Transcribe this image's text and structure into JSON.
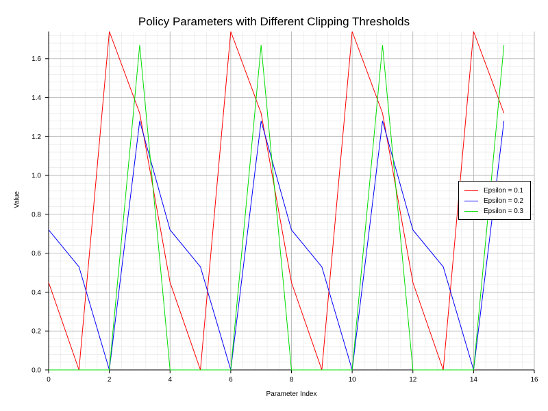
{
  "chart_data": {
    "type": "line",
    "title": "Policy Parameters with Different Clipping Thresholds",
    "xlabel": "Parameter Index",
    "ylabel": "Value",
    "xlim": [
      0,
      16
    ],
    "ylim": [
      0,
      1.74
    ],
    "x_ticks": [
      "0",
      "2",
      "4",
      "6",
      "8",
      "10",
      "12",
      "14",
      "16"
    ],
    "y_ticks": [
      "0.0",
      "0.2",
      "0.4",
      "0.6",
      "0.8",
      "1.0",
      "1.2",
      "1.4",
      "1.6"
    ],
    "grid": true,
    "legend_position": "right",
    "x": [
      0,
      1,
      2,
      3,
      4,
      5,
      6,
      7,
      8,
      9,
      10,
      11,
      12,
      13,
      14,
      15
    ],
    "series": [
      {
        "name": "Epsilon = 0.1",
        "color": "#ff0000",
        "values": [
          0.45,
          0.0,
          1.74,
          1.32,
          0.45,
          0.0,
          1.74,
          1.32,
          0.45,
          0.0,
          1.74,
          1.32,
          0.45,
          0.0,
          1.74,
          1.32
        ]
      },
      {
        "name": "Epsilon = 0.2",
        "color": "#0000ff",
        "values": [
          0.72,
          0.53,
          0.0,
          1.28,
          0.72,
          0.53,
          0.0,
          1.28,
          0.72,
          0.53,
          0.0,
          1.28,
          0.72,
          0.53,
          0.0,
          1.28
        ]
      },
      {
        "name": "Epsilon = 0.3",
        "color": "#00dd00",
        "values": [
          0.0,
          0.0,
          0.0,
          1.67,
          0.0,
          0.0,
          0.0,
          1.67,
          0.0,
          0.0,
          0.0,
          1.67,
          0.0,
          0.0,
          0.0,
          1.67
        ]
      }
    ]
  }
}
